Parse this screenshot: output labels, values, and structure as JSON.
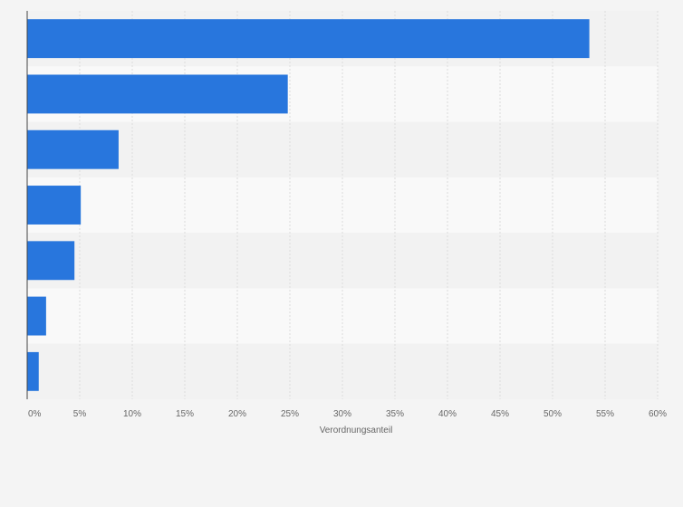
{
  "chart_data": {
    "type": "bar",
    "orientation": "horizontal",
    "title": "",
    "xlabel": "Verordnungsanteil",
    "ylabel": "",
    "categories": [
      "",
      "",
      "",
      "",
      "",
      "",
      ""
    ],
    "values": [
      53.5,
      24.8,
      8.7,
      5.1,
      4.5,
      1.8,
      1.1
    ],
    "xlim": [
      0,
      60
    ],
    "x_ticks": [
      "0%",
      "5%",
      "10%",
      "15%",
      "20%",
      "25%",
      "30%",
      "35%",
      "40%",
      "45%",
      "50%",
      "55%",
      "60%"
    ],
    "grid": true,
    "legend": "none",
    "colors": {
      "bar": "#2876dd",
      "band_light": "#f9f9f9",
      "band_dark": "#f2f2f2",
      "grid": "#dcdcdc",
      "axis": "#444444",
      "text": "#666666"
    }
  }
}
